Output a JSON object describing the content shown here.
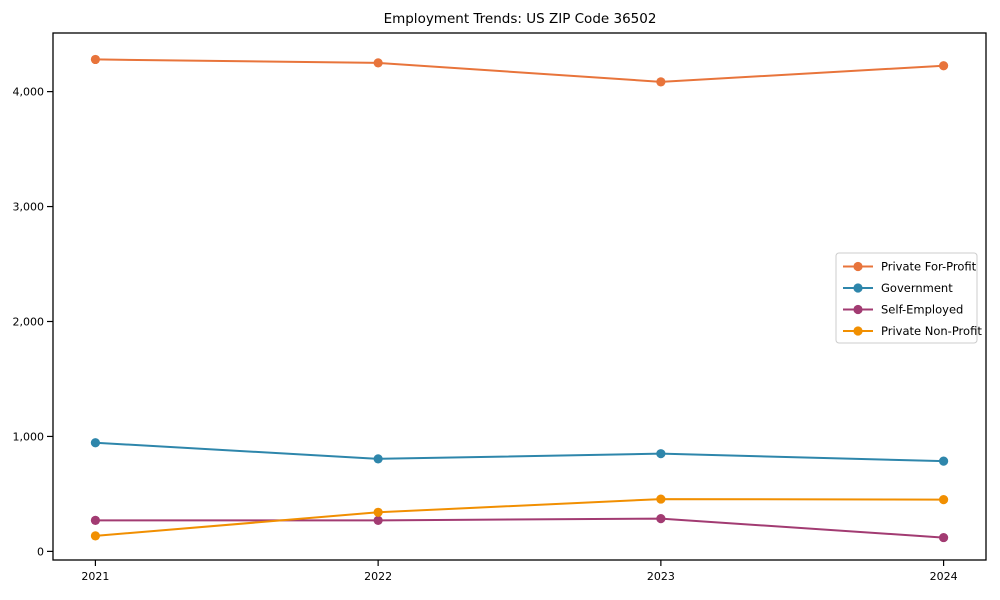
{
  "chart_data": {
    "type": "line",
    "title": "Employment Trends: US ZIP Code 36502",
    "xlabel": "",
    "ylabel": "",
    "x": [
      2021,
      2022,
      2023,
      2024
    ],
    "x_tick_labels": [
      "2021",
      "2022",
      "2023",
      "2024"
    ],
    "y_ticks": [
      0,
      1000,
      2000,
      3000,
      4000
    ],
    "y_tick_labels": [
      "0",
      "1,000",
      "2,000",
      "3,000",
      "4,000"
    ],
    "ylim": [
      -75,
      4510
    ],
    "x_index_lim": [
      -0.15,
      3.15
    ],
    "grid": false,
    "legend_position": "right-middle",
    "series": [
      {
        "name": "Private For-Profit",
        "color": "#E8743B",
        "values": [
          4280,
          4250,
          4085,
          4225
        ]
      },
      {
        "name": "Government",
        "color": "#2E86AB",
        "values": [
          945,
          805,
          850,
          785
        ]
      },
      {
        "name": "Self-Employed",
        "color": "#A23B72",
        "values": [
          270,
          270,
          285,
          120
        ]
      },
      {
        "name": "Private Non-Profit",
        "color": "#F18F01",
        "values": [
          135,
          340,
          455,
          450
        ]
      }
    ],
    "colors": {
      "spine": "#000000",
      "tick_text": "#000000",
      "title_text": "#000000",
      "legend_border": "#cccccc",
      "legend_bg": "#ffffff",
      "background": "#ffffff"
    }
  }
}
